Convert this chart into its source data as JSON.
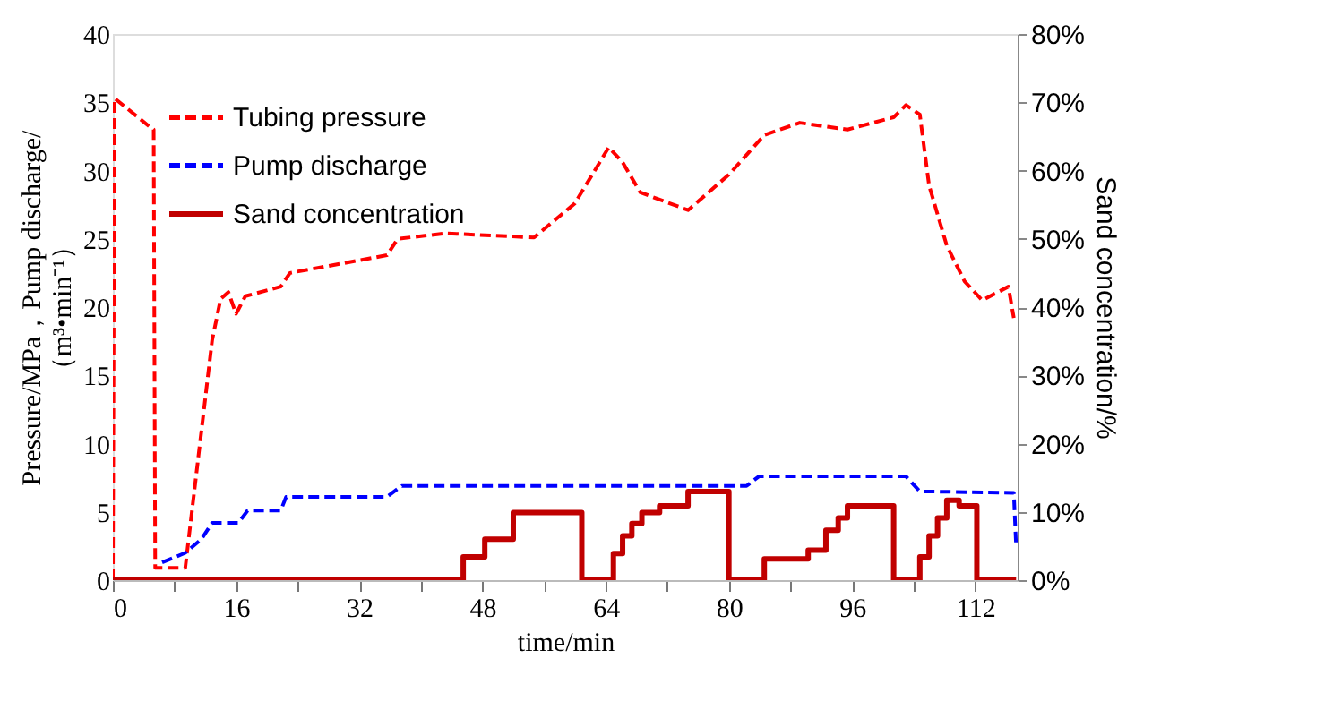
{
  "chart_data": {
    "type": "line",
    "xlabel": "time/min",
    "ylabel": "Pressure/MPa，Pump discharge/\n（m³•min⁻¹）",
    "y2label": "Sand concentration/%",
    "xlim": [
      0,
      117.5
    ],
    "xticks": [
      0,
      {
        "value": 8,
        "label": null
      },
      16,
      {
        "value": 24,
        "label": null
      },
      32,
      {
        "value": 40,
        "label": null
      },
      48,
      {
        "value": 56,
        "label": null
      },
      64,
      {
        "value": 72,
        "label": null
      },
      80,
      {
        "value": 88,
        "label": null
      },
      96,
      {
        "value": 104,
        "label": null
      },
      112
    ],
    "ylim": [
      0,
      40
    ],
    "yticks": [
      0,
      5,
      10,
      15,
      20,
      25,
      30,
      35,
      40
    ],
    "y2lim": [
      0,
      80
    ],
    "y2ticks": [
      {
        "value": 0,
        "label": "0%"
      },
      {
        "value": 10,
        "label": "10%"
      },
      {
        "value": 20,
        "label": "20%"
      },
      {
        "value": 30,
        "label": "30%"
      },
      {
        "value": 40,
        "label": "40%"
      },
      {
        "value": 50,
        "label": "50%"
      },
      {
        "value": 60,
        "label": "60%"
      },
      {
        "value": 70,
        "label": "70%"
      },
      {
        "value": 80,
        "label": "80%"
      }
    ],
    "grid": false,
    "legend": "top left",
    "series": [
      {
        "name": "Tubing pressure",
        "color": "#ff0000",
        "line_style": "dashed",
        "x": [
          0,
          0.2,
          4.8,
          5.3,
          5.5,
          9.4,
          12.9,
          14,
          15,
          16,
          17.2,
          21.8,
          23,
          35.6,
          37,
          43.2,
          54.7,
          60,
          64.4,
          66.2,
          68.5,
          74.7,
          80,
          84.6,
          89.2,
          95.4,
          101.4,
          103,
          104.8,
          106,
          108.3,
          110.6,
          112.9,
          116.3,
          117
        ],
        "values": [
          0,
          35.3,
          33.2,
          33,
          0.9,
          0.9,
          17.6,
          20.6,
          21.1,
          19.5,
          20.8,
          21.5,
          22.5,
          23.8,
          25,
          25.4,
          25.1,
          27.6,
          31.7,
          30.6,
          28.4,
          27.1,
          29.7,
          32.6,
          33.5,
          33,
          33.9,
          34.8,
          34.1,
          28.9,
          24.5,
          21.9,
          20.5,
          21.5,
          19.2
        ]
      },
      {
        "name": "Pump discharge",
        "color": "#0000ff",
        "line_style": "dashed",
        "x": [
          6.4,
          9.4,
          11.5,
          12.9,
          16.3,
          17.5,
          21.8,
          22.5,
          35.6,
          37.5,
          82.3,
          83.9,
          103,
          104.8,
          117,
          117.3
        ],
        "values": [
          1.3,
          2,
          3,
          4.2,
          4.2,
          5.1,
          5.1,
          6.1,
          6.1,
          6.9,
          6.9,
          7.6,
          7.6,
          6.5,
          6.4,
          2.5
        ]
      },
      {
        "name": "Sand concentration",
        "color": "#c00000",
        "type": "step",
        "axis": "y2",
        "line_style": "solid",
        "x": [
          0,
          45.5,
          48.3,
          52,
          60.9,
          65,
          66.2,
          67.4,
          68.7,
          71,
          74.7,
          80,
          84.6,
          90.3,
          92.6,
          94.2,
          95.4,
          101.4,
          104.8,
          106,
          107.1,
          108.3,
          109.9,
          112.2,
          113.8,
          117.3
        ],
        "values": [
          0,
          3.4,
          6,
          9.9,
          0,
          3.9,
          6.5,
          8.3,
          9.9,
          10.9,
          13,
          0,
          3.1,
          4.4,
          7.3,
          9.1,
          10.9,
          0,
          3.4,
          6.5,
          9.1,
          11.7,
          10.9,
          0,
          0,
          0
        ]
      }
    ]
  }
}
